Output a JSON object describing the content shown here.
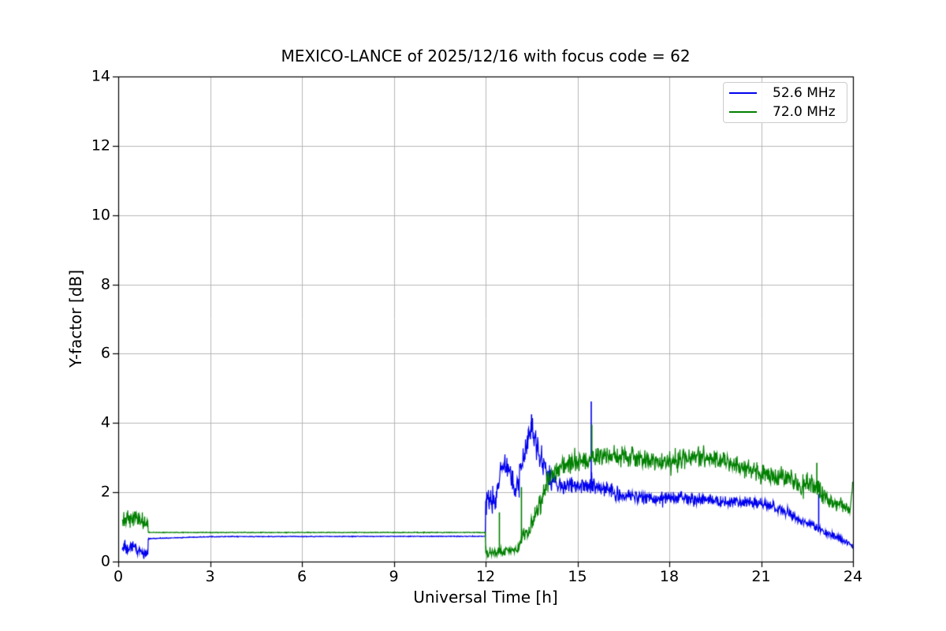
{
  "figure": {
    "background": "#ffffff",
    "spine_color": "#000000"
  },
  "chart_data": {
    "type": "line",
    "title": "MEXICO-LANCE of 2025/12/16 with focus code = 62",
    "xlabel": "Universal Time [h]",
    "ylabel": "Y-factor [dB]",
    "xlim": [
      0,
      24
    ],
    "ylim": [
      0,
      14
    ],
    "xticks": [
      0,
      3,
      6,
      9,
      12,
      15,
      18,
      21,
      24
    ],
    "yticks": [
      0,
      2,
      4,
      6,
      8,
      10,
      12,
      14
    ],
    "grid": true,
    "grid_color": "#b0b0b0",
    "legend_position": "upper right",
    "keypoint_format": "[hour, value_dB, noise_halfwidth_dB]",
    "series": [
      {
        "name": "52.6 MHz",
        "color": "#0000ee",
        "keypoints": [
          [
            0.13,
            0.4,
            0.25
          ],
          [
            0.35,
            0.33,
            0.22
          ],
          [
            0.5,
            0.45,
            0.2
          ],
          [
            0.65,
            0.3,
            0.2
          ],
          [
            0.97,
            0.22,
            0.15
          ],
          [
            0.98,
            0.66,
            0.012
          ],
          [
            3.0,
            0.72,
            0.012
          ],
          [
            11.99,
            0.73,
            0.012
          ],
          [
            12.0,
            1.75,
            0.45
          ],
          [
            12.35,
            1.8,
            0.42
          ],
          [
            12.5,
            2.6,
            0.42
          ],
          [
            12.65,
            2.85,
            0.4
          ],
          [
            12.8,
            2.6,
            0.45
          ],
          [
            12.95,
            2.1,
            0.45
          ],
          [
            13.1,
            2.3,
            0.45
          ],
          [
            13.3,
            3.3,
            0.45
          ],
          [
            13.45,
            3.75,
            0.4
          ],
          [
            13.6,
            3.7,
            0.45
          ],
          [
            13.75,
            3.1,
            0.4
          ],
          [
            13.95,
            2.6,
            0.32
          ],
          [
            14.2,
            2.3,
            0.28
          ],
          [
            14.7,
            2.15,
            0.27
          ],
          [
            15.2,
            2.25,
            0.28
          ],
          [
            15.5,
            2.2,
            0.28
          ],
          [
            16.0,
            2.05,
            0.26
          ],
          [
            16.5,
            1.9,
            0.22
          ],
          [
            17.5,
            1.82,
            0.2
          ],
          [
            18.5,
            1.85,
            0.2
          ],
          [
            19.5,
            1.75,
            0.18
          ],
          [
            20.4,
            1.72,
            0.17
          ],
          [
            21.0,
            1.68,
            0.16
          ],
          [
            21.6,
            1.5,
            0.16
          ],
          [
            22.1,
            1.28,
            0.15
          ],
          [
            22.6,
            1.08,
            0.14
          ],
          [
            23.0,
            0.88,
            0.13
          ],
          [
            23.5,
            0.72,
            0.12
          ],
          [
            24.0,
            0.45,
            0.1
          ]
        ],
        "spikes": [
          [
            13.5,
            4.25
          ],
          [
            15.45,
            4.62
          ],
          [
            22.88,
            1.95
          ]
        ]
      },
      {
        "name": "72.0 MHz",
        "color": "#008000",
        "keypoints": [
          [
            0.13,
            1.18,
            0.27
          ],
          [
            0.5,
            1.25,
            0.25
          ],
          [
            0.8,
            1.15,
            0.22
          ],
          [
            0.97,
            1.1,
            0.2
          ],
          [
            0.98,
            0.84,
            0.012
          ],
          [
            11.99,
            0.84,
            0.012
          ],
          [
            12.0,
            0.25,
            0.13
          ],
          [
            12.6,
            0.28,
            0.14
          ],
          [
            13.05,
            0.33,
            0.16
          ],
          [
            13.2,
            0.68,
            0.22
          ],
          [
            13.4,
            0.85,
            0.25
          ],
          [
            13.7,
            1.5,
            0.27
          ],
          [
            14.0,
            2.25,
            0.3
          ],
          [
            14.4,
            2.75,
            0.3
          ],
          [
            15.0,
            2.9,
            0.3
          ],
          [
            15.6,
            3.0,
            0.32
          ],
          [
            16.6,
            3.05,
            0.32
          ],
          [
            17.3,
            2.92,
            0.3
          ],
          [
            18.1,
            2.88,
            0.3
          ],
          [
            18.75,
            3.05,
            0.32
          ],
          [
            19.2,
            2.95,
            0.3
          ],
          [
            19.8,
            2.95,
            0.3
          ],
          [
            20.4,
            2.7,
            0.32
          ],
          [
            21.0,
            2.55,
            0.33
          ],
          [
            21.9,
            2.4,
            0.3
          ],
          [
            22.3,
            2.2,
            0.3
          ],
          [
            22.65,
            2.3,
            0.32
          ],
          [
            23.1,
            1.85,
            0.26
          ],
          [
            23.5,
            1.6,
            0.21
          ],
          [
            23.9,
            1.5,
            0.2
          ],
          [
            23.97,
            2.05,
            0.18
          ],
          [
            24.0,
            2.15,
            0.12
          ]
        ],
        "spikes": [
          [
            12.45,
            1.42
          ],
          [
            13.17,
            2.15
          ],
          [
            15.47,
            3.95
          ],
          [
            22.82,
            2.85
          ]
        ]
      }
    ]
  }
}
